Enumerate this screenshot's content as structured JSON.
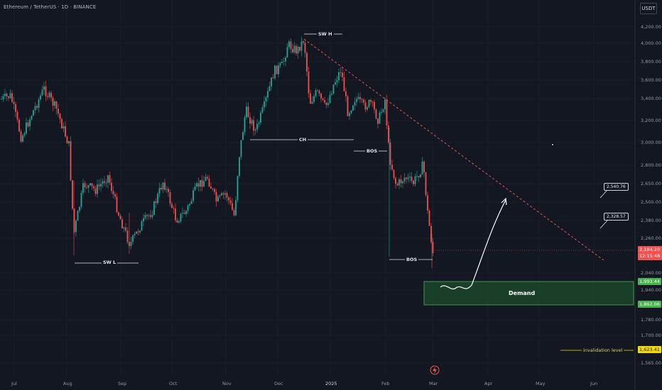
{
  "header": {
    "title": "Ethereum / TetherUS · 1D · BINANCE",
    "currency": "USDT"
  },
  "price_axis": [
    "4,200.00",
    "4,000.00",
    "3,800.00",
    "3,600.00",
    "3,400.00",
    "3,200.00",
    "3,000.00",
    "2,800.00",
    "2,650.00",
    "2,500.00",
    "2,380.00",
    "2,260.00",
    "2,040.00",
    "1,940.00",
    "1,780.00",
    "1,700.00",
    "1,565.00"
  ],
  "time_axis": [
    "Jul",
    "Aug",
    "Sep",
    "Oct",
    "Nov",
    "Dec",
    "2025",
    "Feb",
    "Mar",
    "Apr",
    "May",
    "Jun"
  ],
  "price_tags": {
    "current_price": "2,184.20",
    "countdown": "12:15:48",
    "demand_top": "1,993.44",
    "demand_bottom": "1,862.06",
    "invalidation": "1,623.41"
  },
  "callouts": {
    "target_high": "2,540.76",
    "target_low": "2,328.57"
  },
  "annotations": {
    "swing_high": "SW H",
    "swing_low": "SW L",
    "change_of_character": "CH",
    "bos_1": "BOS",
    "bos_2": "BOS",
    "demand": "Demand",
    "invalidation_level": "invalidation level"
  },
  "colors": {
    "background": "#131722",
    "bull": "#26a69a",
    "bear": "#ef5350",
    "demand_fill": "#1e4d2b",
    "demand_border": "#4caf50",
    "trendline": "#ef5350",
    "invalidation": "#f5d90a"
  },
  "icons": {
    "logo": "lightning-icon"
  }
}
